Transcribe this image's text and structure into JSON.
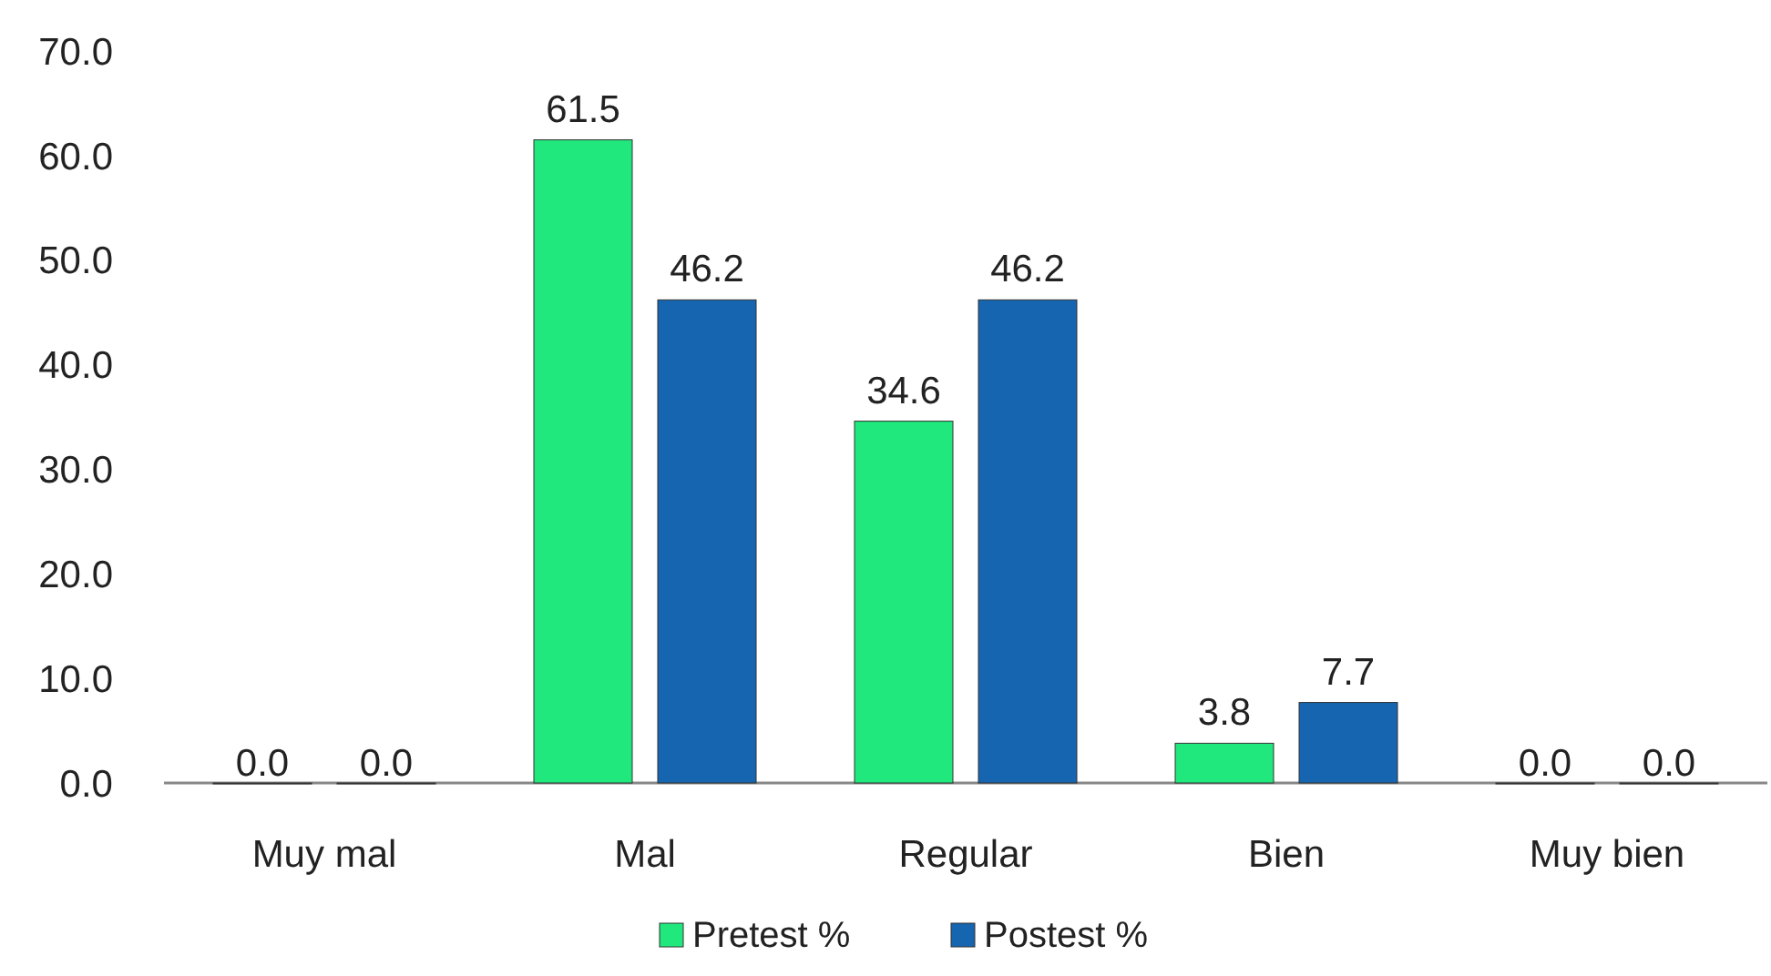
{
  "chart_data": {
    "type": "bar",
    "categories": [
      "Muy mal",
      "Mal",
      "Regular",
      "Bien",
      "Muy bien"
    ],
    "series": [
      {
        "name": "Pretest %",
        "color": "#20e87c",
        "values": [
          0.0,
          61.5,
          34.6,
          3.8,
          0.0
        ],
        "value_labels": [
          "0.0",
          "61.5",
          "34.6",
          "3.8",
          "0.0"
        ]
      },
      {
        "name": "Postest %",
        "color": "#1565b0",
        "values": [
          0.0,
          46.2,
          46.2,
          7.7,
          0.0
        ],
        "value_labels": [
          "0.0",
          "46.2",
          "46.2",
          "7.7",
          "0.0"
        ]
      }
    ],
    "ylim": [
      0,
      70
    ],
    "yticks": [
      {
        "value": 0,
        "label": "0.0"
      },
      {
        "value": 10,
        "label": "10.0"
      },
      {
        "value": 20,
        "label": "20.0"
      },
      {
        "value": 30,
        "label": "30.0"
      },
      {
        "value": 40,
        "label": "40.0"
      },
      {
        "value": 50,
        "label": "50.0"
      },
      {
        "value": 60,
        "label": "60.0"
      },
      {
        "value": 70,
        "label": "70.0"
      }
    ],
    "legend": "bottom",
    "grid": false
  }
}
